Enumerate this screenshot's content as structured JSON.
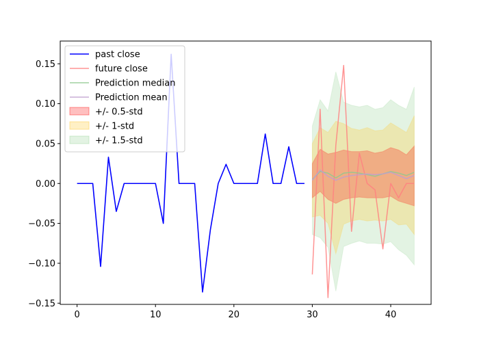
{
  "chart_data": {
    "type": "line",
    "title": "",
    "xlabel": "",
    "ylabel": "",
    "xlim": [
      -2.15,
      45.15
    ],
    "ylim": [
      -0.1515,
      0.1785
    ],
    "xticks": [
      0,
      10,
      20,
      30,
      40
    ],
    "xtick_labels": [
      "0",
      "10",
      "20",
      "30",
      "40"
    ],
    "yticks": [
      -0.15,
      -0.1,
      -0.05,
      0.0,
      0.05,
      0.1,
      0.15
    ],
    "ytick_labels": [
      "−0.15",
      "−0.10",
      "−0.05",
      "0.00",
      "0.05",
      "0.10",
      "0.15"
    ],
    "grid": false,
    "legend_position": "top-left",
    "series": [
      {
        "name": "past close",
        "kind": "line",
        "color": "#0000ff",
        "x": [
          0,
          1,
          2,
          3,
          4,
          5,
          6,
          7,
          8,
          9,
          10,
          11,
          12,
          13,
          14,
          15,
          16,
          17,
          18,
          19,
          20,
          21,
          22,
          23,
          24,
          25,
          26,
          27,
          28,
          29
        ],
        "values": [
          0,
          0,
          0,
          -0.104,
          0.033,
          -0.035,
          0,
          0,
          0,
          0,
          0,
          -0.05,
          0.162,
          0,
          0,
          0,
          -0.136,
          -0.058,
          0,
          0.024,
          0,
          0,
          0,
          0,
          0.062,
          0,
          0,
          0.046,
          0,
          0
        ]
      },
      {
        "name": "future close",
        "kind": "line",
        "color": "#ff8080",
        "x": [
          30,
          31,
          32,
          33,
          34,
          35,
          36,
          37,
          38,
          39,
          40,
          41,
          42,
          43
        ],
        "values": [
          -0.114,
          0.093,
          -0.143,
          0.048,
          0.148,
          -0.06,
          0.038,
          0,
          -0.008,
          -0.082,
          0,
          -0.018,
          0,
          0
        ]
      },
      {
        "name": "Prediction median",
        "kind": "line",
        "color": "#8fc88f",
        "x": [
          30,
          31,
          32,
          33,
          34,
          35,
          36,
          37,
          38,
          39,
          40,
          41,
          42,
          43
        ],
        "values": [
          0.005,
          0.015,
          0.013,
          0.007,
          0.013,
          0.014,
          0.013,
          0.011,
          0.009,
          0.012,
          0.015,
          0.013,
          0.01,
          0.014
        ]
      },
      {
        "name": "Prediction mean",
        "kind": "line",
        "color": "#bf9fcf",
        "x": [
          30,
          31,
          32,
          33,
          34,
          35,
          36,
          37,
          38,
          39,
          40,
          41,
          42,
          43
        ],
        "values": [
          0.004,
          0.017,
          0.009,
          0.004,
          0.008,
          0.01,
          0.011,
          0.012,
          0.011,
          0.012,
          0.014,
          0.01,
          0.006,
          0.01
        ]
      },
      {
        "name": "+/- 0.5-std",
        "kind": "band",
        "color": "#ff0000",
        "opacity": 0.25,
        "x": [
          30,
          31,
          32,
          33,
          34,
          35,
          36,
          37,
          38,
          39,
          40,
          41,
          42,
          43
        ],
        "upper": [
          0.025,
          0.043,
          0.037,
          0.039,
          0.042,
          0.04,
          0.04,
          0.041,
          0.038,
          0.04,
          0.045,
          0.042,
          0.036,
          0.047
        ],
        "lower": [
          -0.018,
          -0.01,
          -0.02,
          -0.025,
          -0.02,
          -0.018,
          -0.017,
          -0.018,
          -0.018,
          -0.018,
          -0.016,
          -0.022,
          -0.025,
          -0.028
        ]
      },
      {
        "name": "+/- 1-std",
        "kind": "band",
        "color": "#ffc830",
        "opacity": 0.28,
        "x": [
          30,
          31,
          32,
          33,
          34,
          35,
          36,
          37,
          38,
          39,
          40,
          41,
          42,
          43
        ],
        "upper": [
          0.05,
          0.07,
          0.064,
          0.078,
          0.075,
          0.069,
          0.067,
          0.07,
          0.066,
          0.067,
          0.076,
          0.07,
          0.064,
          0.085
        ],
        "lower": [
          -0.042,
          -0.04,
          -0.05,
          -0.088,
          -0.051,
          -0.047,
          -0.045,
          -0.047,
          -0.046,
          -0.047,
          -0.045,
          -0.052,
          -0.051,
          -0.064
        ]
      },
      {
        "name": "+/- 1.5-std",
        "kind": "band",
        "color": "#90d090",
        "opacity": 0.25,
        "x": [
          30,
          31,
          32,
          33,
          34,
          35,
          36,
          37,
          38,
          39,
          40,
          41,
          42,
          43
        ],
        "upper": [
          0.072,
          0.105,
          0.091,
          0.14,
          0.102,
          0.098,
          0.096,
          0.098,
          0.093,
          0.095,
          0.105,
          0.098,
          0.093,
          0.121
        ],
        "lower": [
          -0.064,
          -0.068,
          -0.08,
          -0.135,
          -0.079,
          -0.075,
          -0.072,
          -0.075,
          -0.075,
          -0.076,
          -0.073,
          -0.083,
          -0.09,
          -0.102
        ]
      }
    ]
  }
}
